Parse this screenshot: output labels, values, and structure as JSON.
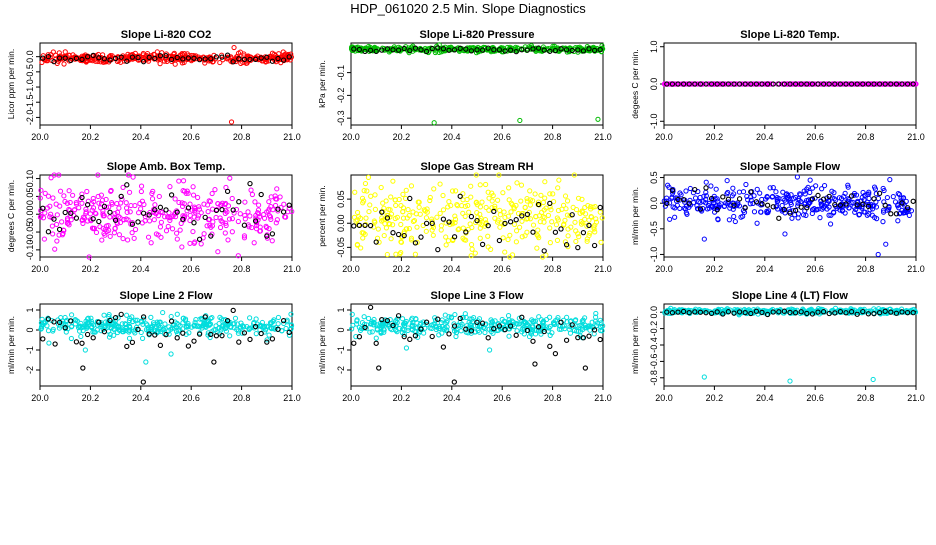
{
  "title": "HDP_061020  2.5 Min. Slope Diagnostics",
  "chart_data": [
    {
      "type": "scatter",
      "title": "Slope Li-820 CO2",
      "ylabel": "Licor ppm per min.",
      "xlim": [
        20.0,
        21.0
      ],
      "ylim": [
        -2.25,
        0.45
      ],
      "x_ticks": [
        "20.0",
        "20.2",
        "20.4",
        "20.6",
        "20.8",
        "21.0"
      ],
      "y_ticks": [
        {
          "v": -2.0,
          "label": "-2.0"
        },
        {
          "v": -1.5,
          "label": "-1.5"
        },
        {
          "v": -1.0,
          "label": "-1.0"
        },
        {
          "v": -0.5,
          "label": "-0.5"
        },
        {
          "v": 0.0,
          "label": "0.0"
        }
      ],
      "dense_color": "#ff0000",
      "sparse_color": "#000000",
      "dense_center": -0.05,
      "dense_spread": 0.17,
      "sparse_center": -0.05,
      "sparse_spread": 0.13,
      "dense_outliers": [
        [
          20.77,
          0.3
        ],
        [
          20.76,
          -2.15
        ]
      ],
      "sparse_outliers": [],
      "grid": false,
      "legend": "none"
    },
    {
      "type": "scatter",
      "title": "Slope Li-820 Pressure",
      "ylabel": "kPa per min.",
      "xlim": [
        20.0,
        21.0
      ],
      "ylim": [
        -0.33,
        0.03
      ],
      "x_ticks": [
        "20.0",
        "20.2",
        "20.4",
        "20.6",
        "20.8",
        "21.0"
      ],
      "y_ticks": [
        {
          "v": -0.3,
          "label": "-0.3"
        },
        {
          "v": -0.2,
          "label": "-0.2"
        },
        {
          "v": -0.1,
          "label": "-0.1"
        }
      ],
      "dense_color": "#00bb00",
      "sparse_color": "#000000",
      "dense_center": 0.002,
      "dense_spread": 0.012,
      "sparse_center": 0.0,
      "sparse_spread": 0.01,
      "dense_outliers": [
        [
          20.33,
          -0.32
        ],
        [
          20.67,
          -0.31
        ],
        [
          20.98,
          -0.305
        ]
      ],
      "sparse_outliers": [],
      "grid": false,
      "legend": "none"
    },
    {
      "type": "scatter",
      "title": "Slope Li-820 Temp.",
      "ylabel": "degees C per min.",
      "xlim": [
        20.0,
        21.0
      ],
      "ylim": [
        -1.1,
        1.1
      ],
      "x_ticks": [
        "20.0",
        "20.2",
        "20.4",
        "20.6",
        "20.8",
        "21.0"
      ],
      "y_ticks": [
        {
          "v": -1.0,
          "label": "-1.0"
        },
        {
          "v": 0.0,
          "label": "0.0"
        },
        {
          "v": 1.0,
          "label": "1.0"
        }
      ],
      "dense_color": "#ff00ff",
      "sparse_color": "#000000",
      "dense_center": 0.0,
      "dense_spread": 0.0,
      "sparse_center": 0.0,
      "sparse_spread": 0.0,
      "dense_outliers": [],
      "sparse_outliers": [],
      "grid": false,
      "legend": "none"
    },
    {
      "type": "scatter",
      "title": "Slope Amb. Box Temp.",
      "ylabel": "degrees C per min.",
      "xlim": [
        20.0,
        21.0
      ],
      "ylim": [
        -0.12,
        0.11
      ],
      "x_ticks": [
        "20.0",
        "20.2",
        "20.4",
        "20.6",
        "20.8",
        "21.0"
      ],
      "y_ticks": [
        {
          "v": -0.1,
          "label": "-0.10"
        },
        {
          "v": -0.05,
          "label": "-0.05"
        },
        {
          "v": 0.0,
          "label": "0.00"
        },
        {
          "v": 0.05,
          "label": "0.05"
        },
        {
          "v": 0.1,
          "label": "0.10"
        }
      ],
      "dense_color": "#ff00ff",
      "sparse_color": "#000000",
      "dense_center": 0.0,
      "dense_spread": 0.1,
      "sparse_center": 0.0,
      "sparse_spread": 0.09,
      "dense_outliers": [],
      "sparse_outliers": [],
      "grid": false,
      "legend": "none"
    },
    {
      "type": "scatter",
      "title": "Slope Gas Stream RH",
      "ylabel": "percent per min.",
      "xlim": [
        20.0,
        21.0
      ],
      "ylim": [
        -0.07,
        0.1
      ],
      "x_ticks": [
        "20.0",
        "20.2",
        "20.4",
        "20.6",
        "20.8",
        "21.0"
      ],
      "y_ticks": [
        {
          "v": -0.05,
          "label": "-0.05"
        },
        {
          "v": 0.0,
          "label": "0.00"
        },
        {
          "v": 0.05,
          "label": "0.05"
        }
      ],
      "dense_color": "#ffff00",
      "sparse_color": "#000000",
      "dense_center": 0.01,
      "dense_spread": 0.075,
      "sparse_center": 0.0,
      "sparse_spread": 0.06,
      "dense_outliers": [],
      "sparse_outliers": [],
      "grid": false,
      "legend": "none"
    },
    {
      "type": "scatter",
      "title": "Slope Sample Flow",
      "ylabel": "ml/min per min.",
      "xlim": [
        20.0,
        21.0
      ],
      "ylim": [
        -1.05,
        0.55
      ],
      "x_ticks": [
        "20.0",
        "20.2",
        "20.4",
        "20.6",
        "20.8",
        "21.0"
      ],
      "y_ticks": [
        {
          "v": -1.0,
          "label": "-1.0"
        },
        {
          "v": -0.5,
          "label": "-0.5"
        },
        {
          "v": 0.0,
          "label": "0.0"
        },
        {
          "v": 0.5,
          "label": "0.5"
        }
      ],
      "dense_color": "#0000ff",
      "sparse_color": "#000000",
      "dense_center": 0.0,
      "dense_spread": 0.35,
      "sparse_center": 0.0,
      "sparse_spread": 0.25,
      "dense_outliers": [
        [
          20.16,
          -0.7
        ],
        [
          20.48,
          -0.6
        ],
        [
          20.85,
          -1.0
        ],
        [
          20.88,
          -0.8
        ],
        [
          20.58,
          0.45
        ]
      ],
      "sparse_outliers": [],
      "grid": false,
      "legend": "none"
    },
    {
      "type": "scatter",
      "title": "Slope Line 2 Flow",
      "ylabel": "ml/min per min.",
      "xlim": [
        20.0,
        21.0
      ],
      "ylim": [
        -2.8,
        1.3
      ],
      "x_ticks": [
        "20.0",
        "20.2",
        "20.4",
        "20.6",
        "20.8",
        "21.0"
      ],
      "y_ticks": [
        {
          "v": -2.0,
          "label": "-2"
        },
        {
          "v": -1.0,
          "label": "-1"
        },
        {
          "v": 0.0,
          "label": "0"
        },
        {
          "v": 1.0,
          "label": "1"
        }
      ],
      "dense_color": "#00dddd",
      "sparse_color": "#000000",
      "dense_center": 0.2,
      "dense_spread": 0.55,
      "sparse_center": 0.0,
      "sparse_spread": 1.0,
      "dense_outliers": [
        [
          20.18,
          -1.0
        ],
        [
          20.42,
          -1.6
        ],
        [
          20.52,
          -1.2
        ]
      ],
      "sparse_outliers": [
        [
          20.17,
          -1.9
        ],
        [
          20.41,
          -2.6
        ],
        [
          20.69,
          -1.6
        ],
        [
          20.06,
          -0.7
        ]
      ],
      "grid": false,
      "legend": "none"
    },
    {
      "type": "scatter",
      "title": "Slope Line 3 Flow",
      "ylabel": "ml/min per min.",
      "xlim": [
        20.0,
        21.0
      ],
      "ylim": [
        -2.8,
        1.3
      ],
      "x_ticks": [
        "20.0",
        "20.2",
        "20.4",
        "20.6",
        "20.8",
        "21.0"
      ],
      "y_ticks": [
        {
          "v": -2.0,
          "label": "-2"
        },
        {
          "v": -1.0,
          "label": "-1"
        },
        {
          "v": 0.0,
          "label": "0"
        },
        {
          "v": 1.0,
          "label": "1"
        }
      ],
      "dense_color": "#00dddd",
      "sparse_color": "#000000",
      "dense_center": 0.2,
      "dense_spread": 0.5,
      "sparse_center": -0.2,
      "sparse_spread": 1.0,
      "dense_outliers": [
        [
          20.22,
          -0.9
        ],
        [
          20.55,
          -1.0
        ]
      ],
      "sparse_outliers": [
        [
          20.11,
          -1.9
        ],
        [
          20.41,
          -2.6
        ],
        [
          20.73,
          -1.7
        ],
        [
          20.93,
          -1.9
        ]
      ],
      "grid": false,
      "legend": "none"
    },
    {
      "type": "scatter",
      "title": "Slope Line 4 (LT) Flow",
      "ylabel": "ml/min per min.",
      "xlim": [
        20.0,
        21.0
      ],
      "ylim": [
        -0.9,
        0.1
      ],
      "x_ticks": [
        "20.0",
        "20.2",
        "20.4",
        "20.6",
        "20.8",
        "21.0"
      ],
      "y_ticks": [
        {
          "v": -0.8,
          "label": "-0.8"
        },
        {
          "v": -0.6,
          "label": "-0.6"
        },
        {
          "v": -0.4,
          "label": "-0.4"
        },
        {
          "v": -0.2,
          "label": "-0.2"
        },
        {
          "v": 0.0,
          "label": "0.0"
        }
      ],
      "dense_color": "#00dddd",
      "sparse_color": "#000000",
      "dense_center": 0.01,
      "dense_spread": 0.03,
      "sparse_center": 0.0,
      "sparse_spread": 0.025,
      "dense_outliers": [
        [
          20.16,
          -0.79
        ],
        [
          20.5,
          -0.84
        ],
        [
          20.83,
          -0.82
        ]
      ],
      "sparse_outliers": [],
      "grid": false,
      "legend": "none"
    }
  ]
}
